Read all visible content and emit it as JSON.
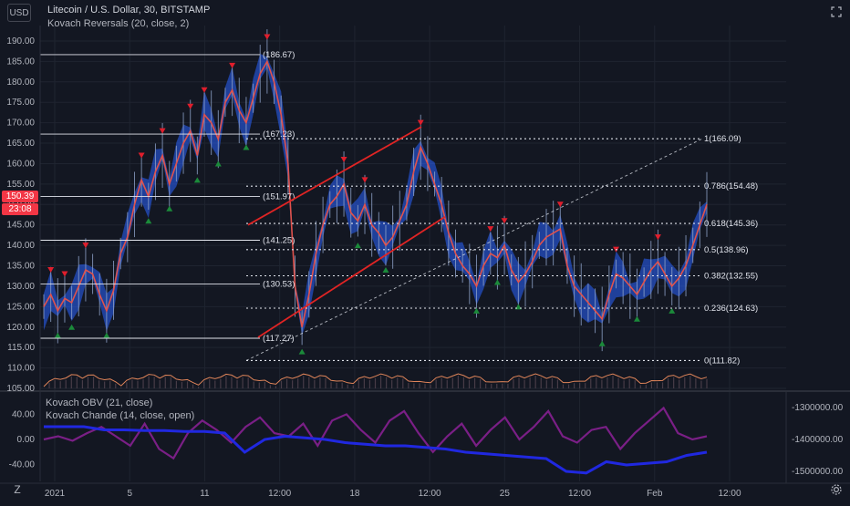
{
  "header": {
    "currency_button": "USD",
    "symbol_line": "Litecoin / U.S. Dollar, 30, BITSTAMP",
    "indicator_line": "Kovach Reversals (20, close, 2)",
    "sub_indicator_1": "Kovach OBV (21, close)",
    "sub_indicator_2": "Kovach Chande (14, close, open)"
  },
  "price_tags": {
    "last_price": "150.39",
    "countdown": "23:08",
    "last_price_color": "#f23645",
    "countdown_color": "#f23645"
  },
  "colors": {
    "background": "#131722",
    "grid": "#1f2430",
    "candle_up": "#2962ff",
    "ma_line": "#e0524c",
    "channel": "#e02424",
    "fib_line": "#e0e3eb",
    "marker_up": "#1b8a3a",
    "marker_down": "#e01e2c",
    "obv_line": "#2028e0",
    "chande_line": "#7a1f86",
    "volume_line": "#e0855a"
  },
  "chart_data": [
    {
      "type": "line",
      "title": "Litecoin / U.S. Dollar, 30, BITSTAMP",
      "ylim": [
        105,
        192
      ],
      "y_ticks": [
        190.0,
        185.0,
        180.0,
        175.0,
        170.0,
        165.0,
        160.0,
        155.0,
        150.0,
        145.0,
        140.0,
        135.0,
        130.0,
        125.0,
        120.0,
        115.0,
        110.0,
        105.0
      ],
      "y_tick_labels": [
        "190.00",
        "185.00",
        "180.00",
        "175.00",
        "170.00",
        "165.00",
        "160.00",
        "155.00",
        "150.00",
        "145.00",
        "140.00",
        "135.00",
        "130.00",
        "125.00",
        "120.00",
        "115.00",
        "110.00",
        "105.00"
      ],
      "x_ticks": [
        "2021",
        "5",
        "11",
        "12:00",
        "18",
        "12:00",
        "25",
        "12:00",
        "Feb",
        "12:00"
      ],
      "series": [
        {
          "values": [
            125,
            128,
            124,
            127,
            126,
            130,
            134,
            133,
            128,
            124,
            129,
            138,
            142,
            150,
            156,
            152,
            158,
            162,
            155,
            160,
            165,
            168,
            162,
            172,
            170,
            166,
            175,
            178,
            173,
            170,
            176,
            182,
            185,
            180,
            172,
            160,
            130,
            120,
            128,
            138,
            145,
            150,
            152,
            155,
            148,
            146,
            150,
            145,
            143,
            140,
            142,
            146,
            150,
            158,
            164,
            160,
            155,
            150,
            143,
            138,
            135,
            133,
            130,
            135,
            138,
            137,
            140,
            134,
            131,
            133,
            136,
            140,
            142,
            143,
            144,
            135,
            130,
            128,
            126,
            124,
            122,
            128,
            133,
            132,
            130,
            128,
            131,
            134,
            136,
            133,
            130,
            132,
            135,
            140,
            145,
            150
          ]
        }
      ],
      "horizontal_levels": [
        "(186.67)",
        "(167.23)",
        "(151.97)",
        "(141.25)",
        "(130.53)",
        "(117.27)"
      ],
      "horizontal_level_values": [
        186.67,
        167.23,
        151.97,
        141.25,
        130.53,
        117.27
      ],
      "fibonacci_levels": [
        "1(166.09)",
        "0.786(154.48)",
        "0.618(145.36)",
        "0.5(138.96)",
        "0.382(132.55)",
        "0.236(124.63)",
        "0(111.82)"
      ],
      "fibonacci_values": [
        166.09,
        154.48,
        145.36,
        138.96,
        132.55,
        124.63,
        111.82
      ]
    },
    {
      "type": "line",
      "title": "Kovach OBV (21, close) / Kovach Chande (14, close, open)",
      "ylim": [
        -55,
        55
      ],
      "y_ticks": [
        40,
        0,
        -40
      ],
      "y_tick_labels": [
        "40.00",
        "0.00",
        "-40.00"
      ],
      "right_y_tick_labels": [
        "-1300000.00",
        "-1400000.00",
        "-1500000.00"
      ],
      "series": [
        {
          "values": [
            -1360000,
            -1360000,
            -1360000,
            -1370000,
            -1370000,
            -1372000,
            -1372000,
            -1375000,
            -1375000,
            -1380000,
            -1440000,
            -1400000,
            -1390000,
            -1395000,
            -1400000,
            -1410000,
            -1415000,
            -1420000,
            -1420000,
            -1425000,
            -1430000,
            -1440000,
            -1445000,
            -1450000,
            -1455000,
            -1460000,
            -1500000,
            -1505000,
            -1470000,
            -1480000,
            -1475000,
            -1470000,
            -1450000,
            -1440000
          ]
        },
        {
          "values": [
            0,
            5,
            -2,
            10,
            20,
            5,
            -10,
            25,
            -15,
            -30,
            10,
            30,
            15,
            -5,
            20,
            35,
            10,
            5,
            25,
            -10,
            30,
            40,
            15,
            -5,
            30,
            45,
            10,
            -20,
            5,
            25,
            -10,
            15,
            35,
            0,
            20,
            45,
            5,
            -5,
            15,
            20,
            -15,
            10,
            30,
            50,
            10,
            0,
            5
          ]
        }
      ]
    }
  ]
}
